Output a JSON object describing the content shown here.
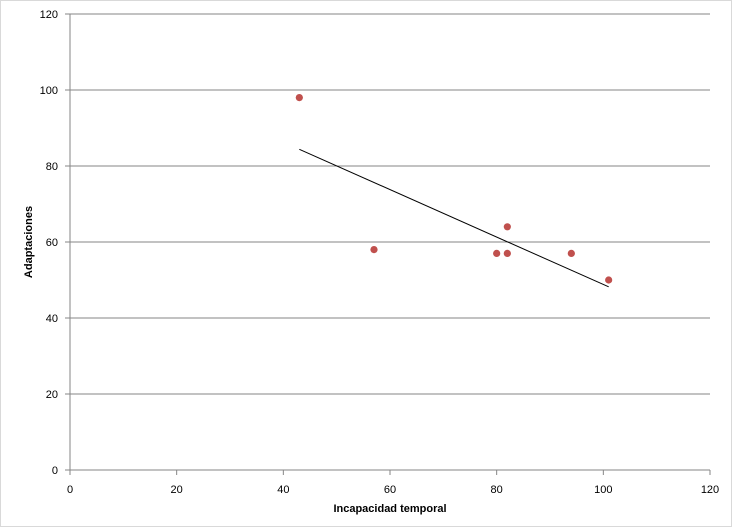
{
  "chart_data": {
    "type": "scatter",
    "title": "",
    "xlabel": "Incapacidad temporal",
    "ylabel": "Adaptaciones",
    "xlim": [
      0,
      120
    ],
    "ylim": [
      0,
      120
    ],
    "x_ticks": [
      0,
      20,
      40,
      60,
      80,
      100,
      120
    ],
    "y_ticks": [
      0,
      20,
      40,
      60,
      80,
      100,
      120
    ],
    "grid": "horizontal",
    "legend": "none",
    "series": [
      {
        "points": [
          {
            "x": 43,
            "y": 98
          },
          {
            "x": 57,
            "y": 58
          },
          {
            "x": 80,
            "y": 57
          },
          {
            "x": 82,
            "y": 57
          },
          {
            "x": 82,
            "y": 64
          },
          {
            "x": 94,
            "y": 57
          },
          {
            "x": 101,
            "y": 50
          }
        ],
        "color": "#c0504d"
      }
    ],
    "trendline": {
      "type": "linear",
      "x_start": 43,
      "y_start": 84.4,
      "x_end": 101,
      "y_end": 48.2,
      "color": "#000000"
    }
  }
}
